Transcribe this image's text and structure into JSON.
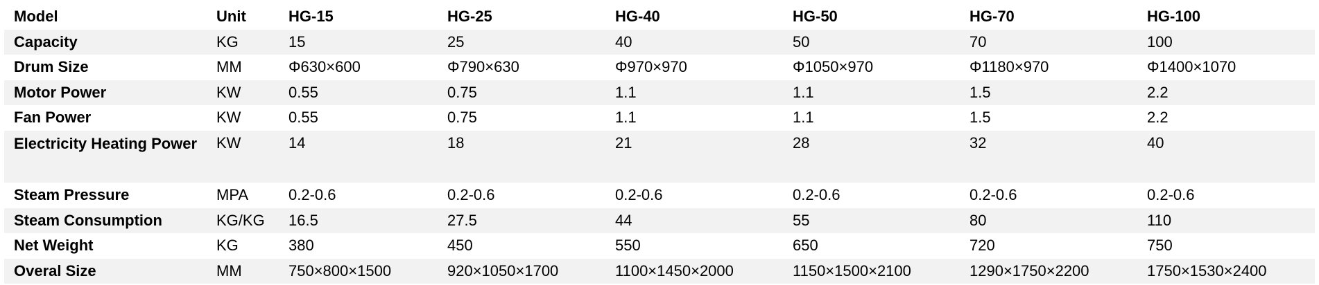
{
  "header": [
    "Model",
    "Unit",
    "HG-15",
    "HG-25",
    "HG-40",
    "HG-50",
    "HG-70",
    "HG-100"
  ],
  "rows": [
    {
      "label": "Capacity",
      "unit": "KG",
      "values": [
        "15",
        "25",
        "40",
        "50",
        "70",
        "100"
      ]
    },
    {
      "label": "Drum Size",
      "unit": "MM",
      "values": [
        "Φ630×600",
        "Φ790×630",
        "Φ970×970",
        "Φ1050×970",
        "Φ1180×970",
        "Φ1400×1070"
      ]
    },
    {
      "label": "Motor Power",
      "unit": "KW",
      "values": [
        "0.55",
        "0.75",
        "1.1",
        "1.1",
        "1.5",
        "2.2"
      ]
    },
    {
      "label": "Fan Power",
      "unit": "KW",
      "values": [
        "0.55",
        "0.75",
        "1.1",
        "1.1",
        "1.5",
        "2.2"
      ]
    },
    {
      "label": "Electricity Heating Power",
      "unit": "KW",
      "values": [
        "14",
        "18",
        "21",
        "28",
        "32",
        "40"
      ]
    },
    {
      "label": "Steam Pressure",
      "unit": "MPA",
      "values": [
        "0.2-0.6",
        "0.2-0.6",
        "0.2-0.6",
        "0.2-0.6",
        "0.2-0.6",
        "0.2-0.6"
      ]
    },
    {
      "label": "Steam Consumption",
      "unit": "KG/KG",
      "values": [
        "16.5",
        "27.5",
        "44",
        "55",
        "80",
        "110"
      ]
    },
    {
      "label": "Net Weight",
      "unit": "KG",
      "values": [
        "380",
        "450",
        "550",
        "650",
        "720",
        "750"
      ]
    },
    {
      "label": "Overal Size",
      "unit": "MM",
      "values": [
        "750×800×1500",
        "920×1050×1700",
        "1100×1450×2000",
        "1150×1500×2100",
        "1290×1750×2200",
        "1750×1530×2400"
      ]
    }
  ],
  "colors": {
    "band": "#f2f2f2"
  }
}
